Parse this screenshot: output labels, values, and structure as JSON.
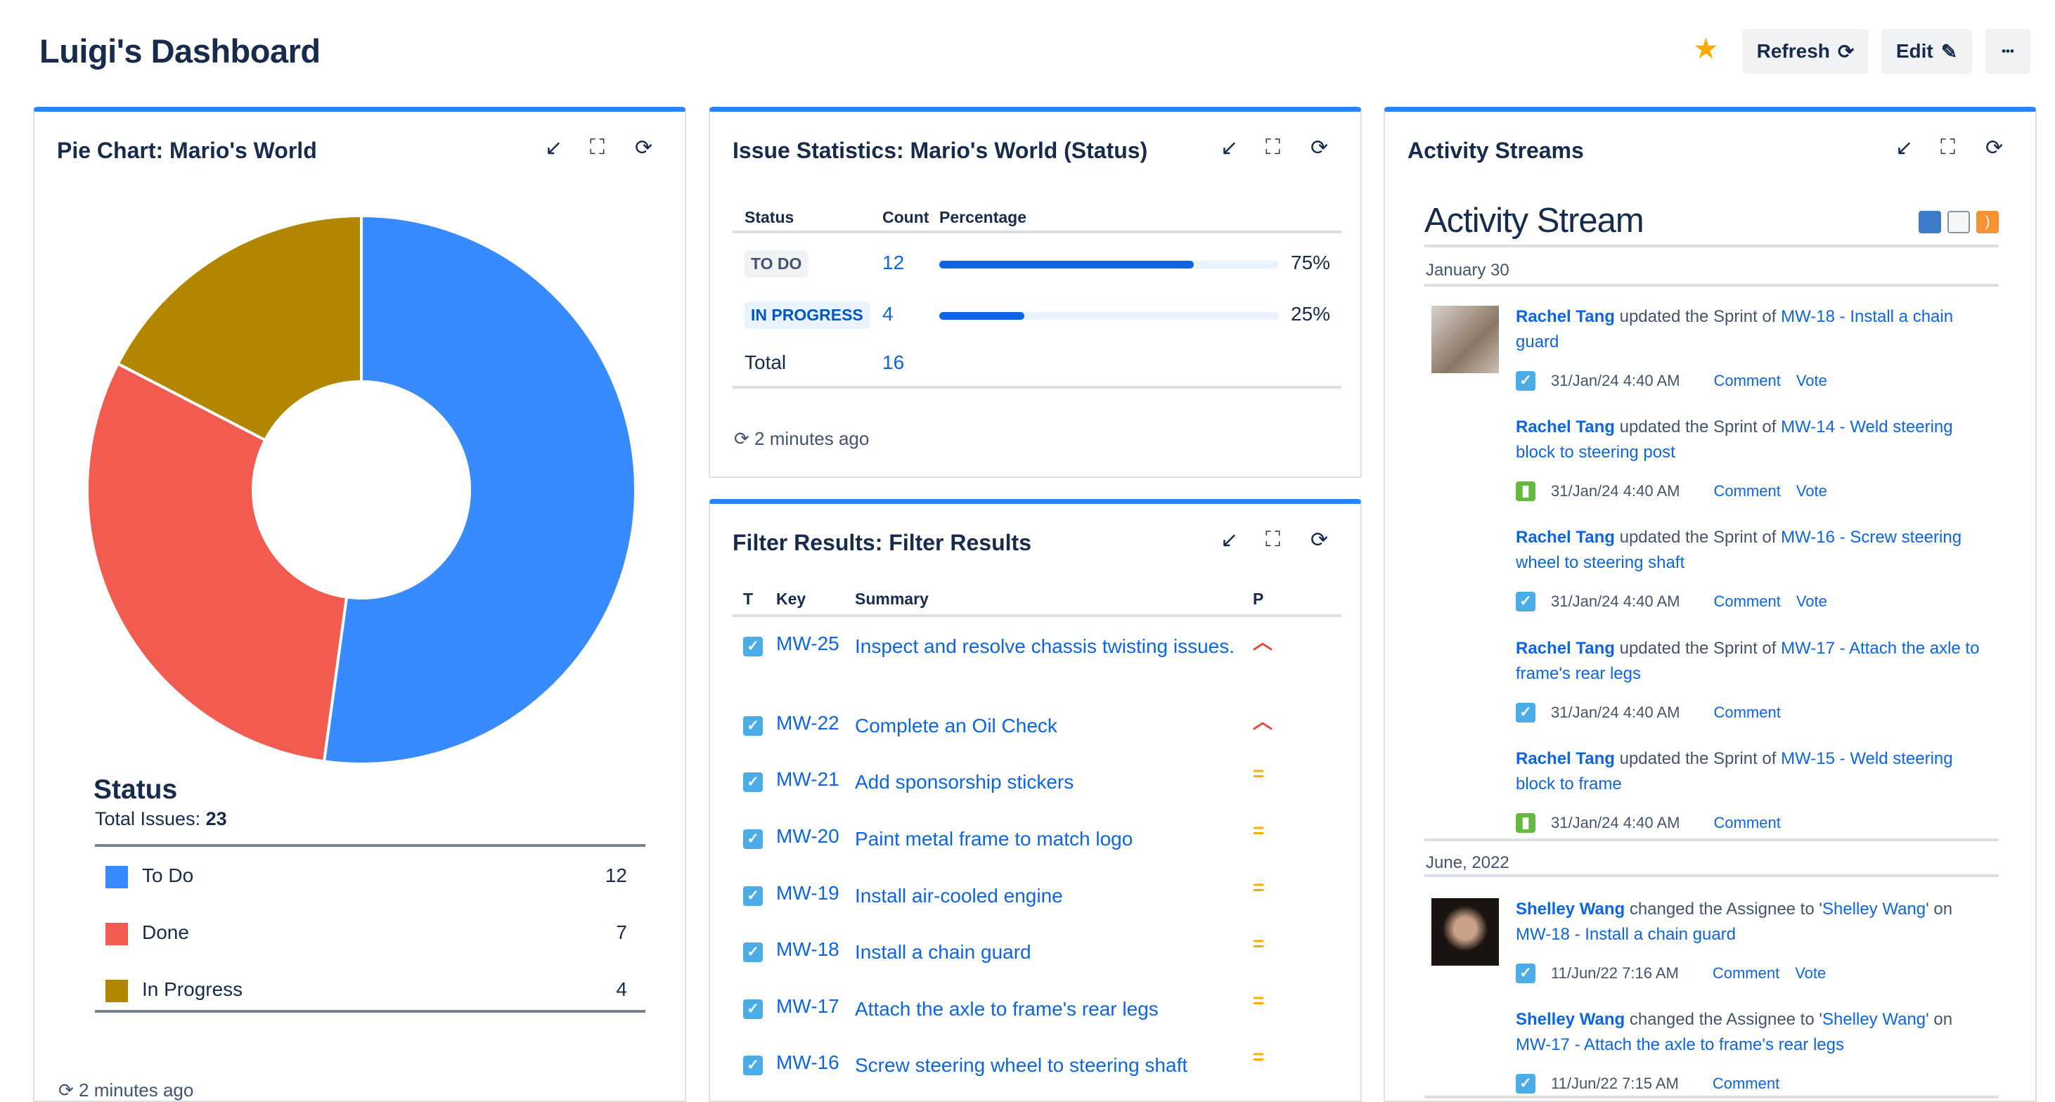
{
  "header": {
    "title": "Luigi's Dashboard",
    "refresh_label": "Refresh",
    "edit_label": "Edit",
    "more_label": "•••",
    "star_color": "#FFAB00"
  },
  "pie_panel": {
    "title": "Pie Chart: Mario's World",
    "legend_title": "Status",
    "total_label": "Total Issues:",
    "total_value": "23",
    "footer": "2 minutes ago"
  },
  "chart_data": {
    "type": "pie",
    "donut": true,
    "title": "Status",
    "categories": [
      "To Do",
      "Done",
      "In Progress"
    ],
    "values": [
      12,
      7,
      4
    ],
    "colors": [
      "#388BFF",
      "#F15B50",
      "#B38600"
    ],
    "legend": "bottom"
  },
  "stats_panel": {
    "title": "Issue Statistics: Mario's World (Status)",
    "headers": [
      "Status",
      "Count",
      "Percentage"
    ],
    "rows": [
      {
        "status": "TO DO",
        "count": "12",
        "percent": 75,
        "percent_label": "75%"
      },
      {
        "status": "IN PROGRESS",
        "count": "4",
        "percent": 25,
        "percent_label": "25%"
      }
    ],
    "total_label": "Total",
    "total_value": "16",
    "footer": "2 minutes ago"
  },
  "filter_panel": {
    "title": "Filter Results: Filter Results",
    "headers": [
      "T",
      "Key",
      "Summary",
      "P"
    ],
    "rows": [
      {
        "key": "MW-25",
        "summary": "Inspect and resolve chassis twisting issues.",
        "priority": "high"
      },
      {
        "key": "MW-22",
        "summary": "Complete an Oil Check",
        "priority": "high"
      },
      {
        "key": "MW-21",
        "summary": "Add sponsorship stickers",
        "priority": "medium"
      },
      {
        "key": "MW-20",
        "summary": "Paint metal frame to match logo",
        "priority": "medium"
      },
      {
        "key": "MW-19",
        "summary": "Install air-cooled engine",
        "priority": "medium"
      },
      {
        "key": "MW-18",
        "summary": "Install a chain guard",
        "priority": "medium"
      },
      {
        "key": "MW-17",
        "summary": "Attach the axle to frame's rear legs",
        "priority": "medium"
      },
      {
        "key": "MW-16",
        "summary": "Screw steering wheel to steering shaft",
        "priority": "medium"
      }
    ]
  },
  "activity_panel": {
    "title": "Activity Streams",
    "heading": "Activity Stream",
    "groups": [
      {
        "date": "January 30",
        "entries": [
          {
            "avatar": true,
            "parts": [
              {
                "type": "actor",
                "text": "Rachel Tang"
              },
              {
                "type": "text",
                "text": " updated the Sprint of "
              },
              {
                "type": "link",
                "text": "MW-18 - Install a chain guard"
              }
            ],
            "icon": "task",
            "time": "31/Jan/24 4:40 AM",
            "actions": [
              "Comment",
              "Vote"
            ]
          },
          {
            "avatar": false,
            "parts": [
              {
                "type": "actor",
                "text": "Rachel Tang"
              },
              {
                "type": "text",
                "text": " updated the Sprint of "
              },
              {
                "type": "link",
                "text": "MW-14 - Weld steering block to steering post"
              }
            ],
            "icon": "story",
            "time": "31/Jan/24 4:40 AM",
            "actions": [
              "Comment",
              "Vote"
            ]
          },
          {
            "avatar": false,
            "parts": [
              {
                "type": "actor",
                "text": "Rachel Tang"
              },
              {
                "type": "text",
                "text": " updated the Sprint of "
              },
              {
                "type": "link",
                "text": "MW-16 - Screw steering wheel to steering shaft"
              }
            ],
            "icon": "task",
            "time": "31/Jan/24 4:40 AM",
            "actions": [
              "Comment",
              "Vote"
            ]
          },
          {
            "avatar": false,
            "parts": [
              {
                "type": "actor",
                "text": "Rachel Tang"
              },
              {
                "type": "text",
                "text": " updated the Sprint of "
              },
              {
                "type": "link",
                "text": "MW-17 - Attach the axle to frame's rear legs"
              }
            ],
            "icon": "task",
            "time": "31/Jan/24 4:40 AM",
            "actions": [
              "Comment"
            ]
          },
          {
            "avatar": false,
            "parts": [
              {
                "type": "actor",
                "text": "Rachel Tang"
              },
              {
                "type": "text",
                "text": " updated the Sprint of "
              },
              {
                "type": "link",
                "text": "MW-15 - Weld steering block to frame"
              }
            ],
            "icon": "story",
            "time": "31/Jan/24 4:40 AM",
            "actions": [
              "Comment"
            ]
          }
        ]
      },
      {
        "date": "June, 2022",
        "entries": [
          {
            "avatar": true,
            "parts": [
              {
                "type": "actor",
                "text": "Shelley Wang"
              },
              {
                "type": "text",
                "text": " changed the Assignee to '"
              },
              {
                "type": "link",
                "text": "Shelley Wang"
              },
              {
                "type": "text",
                "text": "' on "
              },
              {
                "type": "link",
                "text": "MW-18 - Install a chain guard"
              }
            ],
            "icon": "task",
            "time": "11/Jun/22 7:16 AM",
            "actions": [
              "Comment",
              "Vote"
            ]
          },
          {
            "avatar": false,
            "parts": [
              {
                "type": "actor",
                "text": "Shelley Wang"
              },
              {
                "type": "text",
                "text": " changed the Assignee to '"
              },
              {
                "type": "link",
                "text": "Shelley Wang"
              },
              {
                "type": "text",
                "text": "' on "
              },
              {
                "type": "link",
                "text": "MW-17 - Attach the axle to frame's rear legs"
              }
            ],
            "icon": "task",
            "time": "11/Jun/22 7:15 AM",
            "actions": [
              "Comment"
            ]
          }
        ]
      }
    ]
  }
}
